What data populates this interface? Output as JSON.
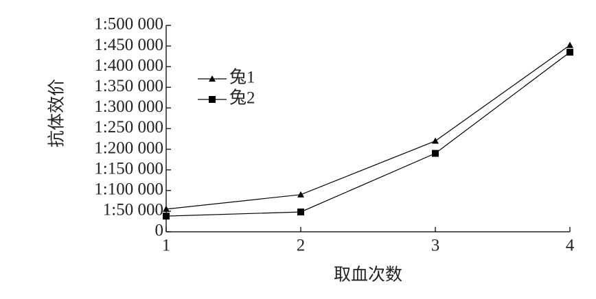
{
  "chart_data": {
    "type": "line",
    "xlabel": "取血次数",
    "ylabel": "抗体效价",
    "x": [
      1,
      2,
      3,
      4
    ],
    "series": [
      {
        "name": "兔1",
        "color": "#000000",
        "marker": "triangle",
        "values": [
          55000,
          90000,
          220000,
          452000
        ]
      },
      {
        "name": "兔2",
        "color": "#000000",
        "marker": "square",
        "values": [
          38000,
          48000,
          190000,
          435000
        ]
      }
    ],
    "xlim": [
      1,
      4
    ],
    "xticks": [
      1,
      2,
      3,
      4
    ],
    "ylim": [
      0,
      500000
    ],
    "yticks": [
      0,
      {
        "value": 50000,
        "label": "1:50 000"
      },
      {
        "value": 100000,
        "label": "1:100 000"
      },
      {
        "value": 150000,
        "label": "1:150 000"
      },
      {
        "value": 200000,
        "label": "1:200 000"
      },
      {
        "value": 250000,
        "label": "1:250 000"
      },
      {
        "value": 300000,
        "label": "1:300 000"
      },
      {
        "value": 350000,
        "label": "1:350 000"
      },
      {
        "value": 400000,
        "label": "1:400 000"
      },
      {
        "value": 450000,
        "label": "1:450 000"
      },
      {
        "value": 500000,
        "label": "1:500 000"
      }
    ],
    "legend": "upper left",
    "grid": false
  }
}
